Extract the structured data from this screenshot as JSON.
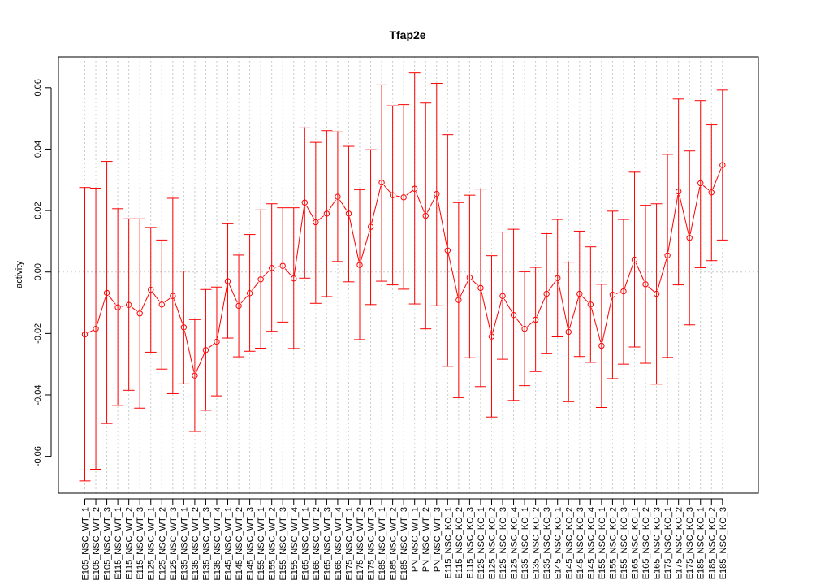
{
  "chart_data": {
    "type": "line",
    "title": "Tfap2e",
    "xlabel": "",
    "ylabel": "activity",
    "ylim": [
      -0.072,
      0.07
    ],
    "yticks": [
      -0.06,
      -0.04,
      -0.02,
      0.0,
      0.02,
      0.04,
      0.06
    ],
    "ytick_labels": [
      "-0.06",
      "-0.04",
      "-0.02",
      "0.00",
      "0.02",
      "0.04",
      "0.06"
    ],
    "grid": true,
    "reference_line": 0,
    "colors": {
      "series": "#ff0000",
      "grid": "#cccccc",
      "axis": "#000000"
    },
    "categories": [
      "E105_NSC_WT_1",
      "E105_NSC_WT_2",
      "E105_NSC_WT_3",
      "E115_NSC_WT_1",
      "E115_NSC_WT_2",
      "E115_NSC_WT_3",
      "E125_NSC_WT_1",
      "E125_NSC_WT_2",
      "E125_NSC_WT_3",
      "E135_NSC_WT_1",
      "E135_NSC_WT_2",
      "E135_NSC_WT_3",
      "E135_NSC_WT_4",
      "E145_NSC_WT_1",
      "E145_NSC_WT_2",
      "E145_NSC_WT_3",
      "E155_NSC_WT_1",
      "E155_NSC_WT_2",
      "E155_NSC_WT_3",
      "E155_NSC_WT_4",
      "E165_NSC_WT_1",
      "E165_NSC_WT_2",
      "E165_NSC_WT_3",
      "E165_NSC_WT_4",
      "E175_NSC_WT_1",
      "E175_NSC_WT_2",
      "E175_NSC_WT_3",
      "E185_NSC_WT_1",
      "E185_NSC_WT_2",
      "E185_NSC_WT_3",
      "PN_NSC_WT_1",
      "PN_NSC_WT_2",
      "PN_NSC_WT_3",
      "E115_NSC_KO_1",
      "E115_NSC_KO_2",
      "E115_NSC_KO_3",
      "E125_NSC_KO_1",
      "E125_NSC_KO_2",
      "E125_NSC_KO_3",
      "E125_NSC_KO_4",
      "E135_NSC_KO_1",
      "E135_NSC_KO_2",
      "E135_NSC_KO_3",
      "E145_NSC_KO_1",
      "E145_NSC_KO_2",
      "E145_NSC_KO_3",
      "E145_NSC_KO_4",
      "E155_NSC_KO_1",
      "E155_NSC_KO_2",
      "E155_NSC_KO_3",
      "E165_NSC_KO_1",
      "E165_NSC_KO_2",
      "E165_NSC_KO_3",
      "E175_NSC_KO_1",
      "E175_NSC_KO_2",
      "E175_NSC_KO_3",
      "E185_NSC_KO_1",
      "E185_NSC_KO_2",
      "E185_NSC_KO_3"
    ],
    "series": [
      {
        "values": [
          -0.0203,
          -0.0185,
          -0.0068,
          -0.0115,
          -0.0107,
          -0.0135,
          -0.0058,
          -0.0106,
          -0.0078,
          -0.018,
          -0.0337,
          -0.0254,
          -0.0227,
          -0.003,
          -0.011,
          -0.0069,
          -0.0024,
          0.0013,
          0.002,
          -0.0021,
          0.0226,
          0.0162,
          0.019,
          0.0245,
          0.019,
          0.0023,
          0.0147,
          0.0291,
          0.025,
          0.0243,
          0.0271,
          0.0183,
          0.0254,
          0.007,
          -0.0091,
          -0.0018,
          -0.0052,
          -0.021,
          -0.0078,
          -0.014,
          -0.0185,
          -0.0155,
          -0.0071,
          -0.002,
          -0.0195,
          -0.0071,
          -0.0106,
          -0.024,
          -0.0074,
          -0.0063,
          0.004,
          -0.004,
          -0.0071,
          0.0054,
          0.0262,
          0.0111,
          0.0289,
          0.0259,
          0.0348
        ],
        "upper": [
          0.0275,
          0.0273,
          0.036,
          0.0206,
          0.0173,
          0.0173,
          0.0145,
          0.0104,
          0.024,
          0.0003,
          -0.0155,
          -0.0057,
          -0.0049,
          0.0157,
          0.0055,
          0.0122,
          0.0202,
          0.0222,
          0.0209,
          0.0209,
          0.0469,
          0.0422,
          0.046,
          0.0456,
          0.0409,
          0.0268,
          0.0398,
          0.0609,
          0.0541,
          0.0545,
          0.0648,
          0.055,
          0.0614,
          0.0447,
          0.0226,
          0.025,
          0.027,
          0.0053,
          0.013,
          0.0139,
          0.0001,
          0.0015,
          0.0125,
          0.0171,
          0.0032,
          0.0133,
          0.0082,
          -0.004,
          0.0198,
          0.0171,
          0.0325,
          0.0217,
          0.0222,
          0.0383,
          0.0563,
          0.0394,
          0.0558,
          0.0479,
          0.0592
        ],
        "lower": [
          -0.068,
          -0.0642,
          -0.0493,
          -0.0434,
          -0.0385,
          -0.0443,
          -0.0261,
          -0.0316,
          -0.0396,
          -0.0364,
          -0.0519,
          -0.045,
          -0.0403,
          -0.0215,
          -0.0276,
          -0.0258,
          -0.0248,
          -0.0193,
          -0.0163,
          -0.0249,
          -0.002,
          -0.0102,
          -0.008,
          0.0034,
          -0.0032,
          -0.022,
          -0.0106,
          -0.003,
          -0.0042,
          -0.0056,
          -0.0104,
          -0.0185,
          -0.011,
          -0.0307,
          -0.0409,
          -0.0279,
          -0.0373,
          -0.0472,
          -0.0284,
          -0.0418,
          -0.037,
          -0.0324,
          -0.0266,
          -0.0211,
          -0.0422,
          -0.0275,
          -0.0294,
          -0.0441,
          -0.0347,
          -0.03,
          -0.0244,
          -0.0297,
          -0.0365,
          -0.0278,
          -0.0042,
          -0.0172,
          0.0014,
          0.0037,
          0.0104
        ]
      }
    ]
  }
}
